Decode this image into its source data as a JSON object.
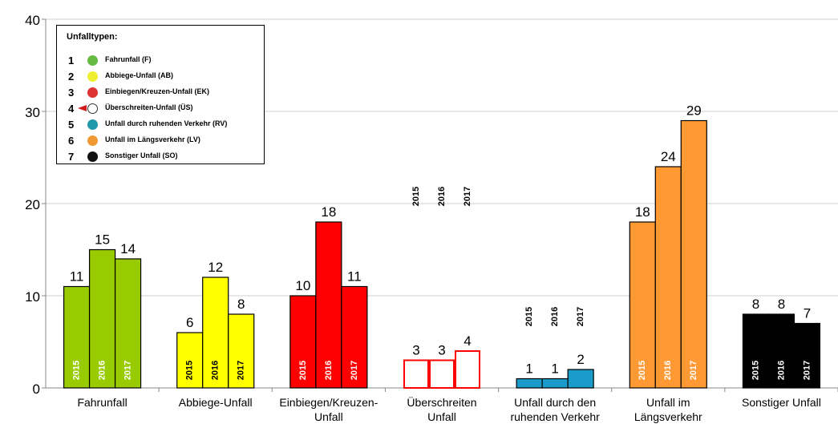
{
  "chart_data": {
    "type": "bar",
    "ylim": [
      0,
      40
    ],
    "y_ticks": [
      0,
      10,
      20,
      30,
      40
    ],
    "grid": true,
    "series_labels": [
      "2015",
      "2016",
      "2017"
    ],
    "groups": [
      {
        "name": "Fahrunfall",
        "label_lines": [
          "Fahrunfall"
        ],
        "color": "#99cc00",
        "outline": false,
        "values": [
          11,
          15,
          14
        ],
        "year_labels": "inside-white"
      },
      {
        "name": "Abbiege-Unfall",
        "label_lines": [
          "Abbiege-Unfall"
        ],
        "color": "#ffff00",
        "outline": false,
        "values": [
          6,
          12,
          8
        ],
        "year_labels": "inside-black"
      },
      {
        "name": "Einbiegen/Kreuzen-Unfall",
        "label_lines": [
          "Einbiegen/Kreuzen-",
          "Unfall"
        ],
        "color": "#ff0000",
        "outline": false,
        "values": [
          10,
          18,
          11
        ],
        "year_labels": "inside-white"
      },
      {
        "name": "Überschreiten Unfall",
        "label_lines": [
          "Überschreiten",
          "Unfall"
        ],
        "color": "#ff0000",
        "outline": true,
        "values": [
          3,
          3,
          4
        ],
        "year_labels": "above-black"
      },
      {
        "name": "Unfall durch den ruhenden Verkehr",
        "label_lines": [
          "Unfall durch den",
          "ruhenden Verkehr"
        ],
        "color": "#1b9bc9",
        "outline": false,
        "values": [
          1,
          1,
          2
        ],
        "year_labels": "above-black"
      },
      {
        "name": "Unfall im Längsverkehr",
        "label_lines": [
          "Unfall im",
          "Längsverkehr"
        ],
        "color": "#ff9933",
        "outline": false,
        "values": [
          18,
          24,
          29
        ],
        "year_labels": "inside-white"
      },
      {
        "name": "Sonstiger Unfall",
        "label_lines": [
          "Sonstiger Unfall"
        ],
        "color": "#000000",
        "outline": false,
        "values": [
          8,
          8,
          7
        ],
        "year_labels": "inside-white"
      }
    ]
  },
  "legend": {
    "title": "Unfalltypen:",
    "items": [
      {
        "num": "1",
        "label": "Fahrunfall (F)",
        "color": "#66bb44",
        "icon": "green-dot-icon"
      },
      {
        "num": "2",
        "label": "Abbiege-Unfall (AB)",
        "color": "#eeee33",
        "icon": "yellow-dot-icon"
      },
      {
        "num": "3",
        "label": "Einbiegen/Kreuzen-Unfall (EK)",
        "color": "#dd3333",
        "icon": "red-dot-icon"
      },
      {
        "num": "4",
        "label": "Überschreiten-Unfall (ÜS)",
        "color": "#ffffff",
        "icon": "white-dot-with-arrow-icon"
      },
      {
        "num": "5",
        "label": "Unfall durch ruhenden Verkehr (RV)",
        "color": "#2299aa",
        "icon": "teal-dot-icon"
      },
      {
        "num": "6",
        "label": "Unfall im Längsverkehr (LV)",
        "color": "#ee9933",
        "icon": "orange-dot-icon"
      },
      {
        "num": "7",
        "label": "Sonstiger Unfall (SO)",
        "color": "#111111",
        "icon": "black-dot-icon"
      }
    ]
  }
}
